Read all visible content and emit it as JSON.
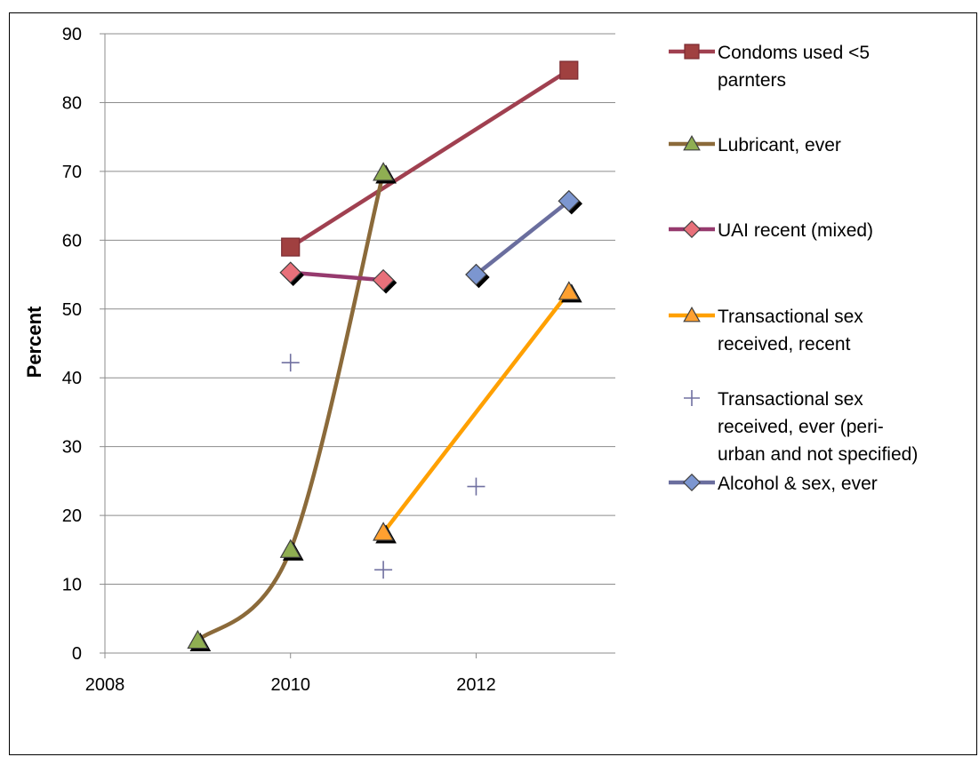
{
  "chart_data": {
    "type": "line",
    "xlabel": "",
    "ylabel": "Percent",
    "xlim": [
      2008,
      2013.5
    ],
    "ylim": [
      0,
      90
    ],
    "x_ticks": [
      2008,
      2010,
      2012
    ],
    "y_ticks": [
      0,
      10,
      20,
      30,
      40,
      50,
      60,
      70,
      80,
      90
    ],
    "grid": "horizontal",
    "legend_position": "right",
    "series": [
      {
        "name": "Condoms used <5 parnters",
        "legend_lines": [
          "Condoms used <5",
          "parnters"
        ],
        "color": "#A04050",
        "marker": "square",
        "marker_color": "#A04040",
        "line": true,
        "smooth": false,
        "points": [
          {
            "x": 2010,
            "y": 59
          },
          {
            "x": 2013,
            "y": 84.7
          }
        ]
      },
      {
        "name": "Lubricant, ever",
        "legend_lines": [
          "Lubricant, ever"
        ],
        "color": "#8B6A3A",
        "marker": "triangle",
        "marker_color": "#8FAE52",
        "line": true,
        "smooth": true,
        "points": [
          {
            "x": 2009,
            "y": 1.8
          },
          {
            "x": 2010,
            "y": 15
          },
          {
            "x": 2011,
            "y": 69.8
          }
        ]
      },
      {
        "name": "UAI recent (mixed)",
        "legend_lines": [
          "UAI recent (mixed)"
        ],
        "color": "#963A6E",
        "marker": "diamond",
        "marker_color": "#E8707A",
        "line": true,
        "smooth": false,
        "points": [
          {
            "x": 2010,
            "y": 55.3
          },
          {
            "x": 2011,
            "y": 54.2
          }
        ]
      },
      {
        "name": "Transactional sex received, recent",
        "legend_lines": [
          "Transactional sex",
          "received, recent"
        ],
        "color": "#FFA000",
        "marker": "triangle",
        "marker_color": "#FFA030",
        "line": true,
        "smooth": false,
        "points": [
          {
            "x": 2011,
            "y": 17.5
          },
          {
            "x": 2013,
            "y": 52.5
          }
        ]
      },
      {
        "name": "Transactional sex received, ever (peri-urban and not specified)",
        "legend_lines": [
          "Transactional sex",
          "received, ever (peri-",
          "urban and not specified)"
        ],
        "color": "#7070A0",
        "marker": "plus",
        "marker_color": "#7070A0",
        "line": false,
        "smooth": false,
        "points": [
          {
            "x": 2010,
            "y": 42.2
          },
          {
            "x": 2011,
            "y": 12.1
          },
          {
            "x": 2012,
            "y": 24.2
          }
        ]
      },
      {
        "name": "Alcohol & sex, ever",
        "legend_lines": [
          "Alcohol & sex, ever"
        ],
        "color": "#6A6E9E",
        "marker": "diamond",
        "marker_color": "#7C96D0",
        "line": true,
        "smooth": false,
        "points": [
          {
            "x": 2012,
            "y": 55
          },
          {
            "x": 2013,
            "y": 65.7
          }
        ]
      }
    ]
  }
}
